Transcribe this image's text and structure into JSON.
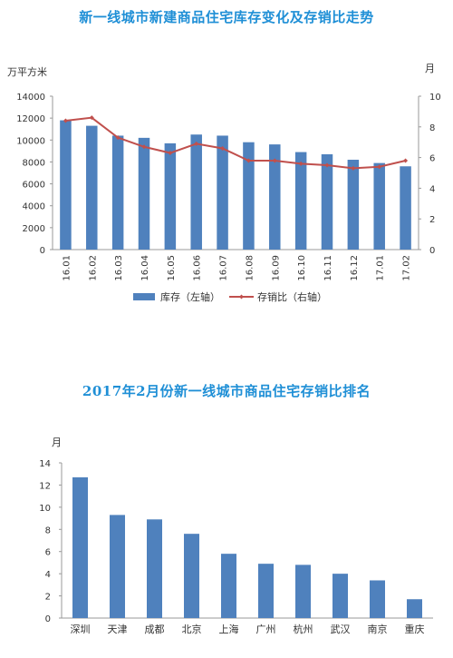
{
  "chart_data": [
    {
      "type": "bar",
      "title": "新一线城市新建商品住宅库存变化及存销比走势",
      "ylabel": "万平方米",
      "y2label": "月",
      "categories": [
        "16.01",
        "16.02",
        "16.03",
        "16.04",
        "16.05",
        "16.06",
        "16.07",
        "16.08",
        "16.09",
        "16.10",
        "16.11",
        "16.12",
        "17.01",
        "17.02"
      ],
      "ylim": [
        0,
        14000
      ],
      "yticks": [
        "0",
        "2000",
        "4000",
        "6000",
        "8000",
        "10000",
        "12000",
        "14000"
      ],
      "y2lim": [
        0,
        10
      ],
      "y2ticks": [
        "0",
        "2",
        "4",
        "6",
        "8",
        "10"
      ],
      "series": [
        {
          "name": "库存（左轴）",
          "type": "bar",
          "axis": "left",
          "values": [
            11800,
            11300,
            10400,
            10200,
            9700,
            10500,
            10400,
            9800,
            9600,
            8900,
            8700,
            8200,
            7900,
            7600
          ]
        },
        {
          "name": "存销比（右轴）",
          "type": "line",
          "axis": "right",
          "values": [
            8.4,
            8.6,
            7.3,
            6.7,
            6.3,
            6.9,
            6.6,
            5.8,
            5.8,
            5.6,
            5.5,
            5.3,
            5.4,
            5.8
          ]
        }
      ],
      "legend_position": "bottom",
      "grid": false
    },
    {
      "type": "bar",
      "title": "2017年2月份新一线城市商品住宅存销比排名",
      "ylabel": "月",
      "categories": [
        "深圳",
        "天津",
        "成都",
        "北京",
        "上海",
        "广州",
        "杭州",
        "武汉",
        "南京",
        "重庆"
      ],
      "values": [
        12.7,
        9.3,
        8.9,
        7.6,
        5.8,
        4.9,
        4.8,
        4.0,
        3.4,
        1.7
      ],
      "ylim": [
        0,
        14
      ],
      "yticks": [
        "0",
        "2",
        "4",
        "6",
        "8",
        "10",
        "12",
        "14"
      ],
      "grid": false
    }
  ],
  "colors": {
    "bar": "#4f81bd",
    "line": "#c0504d",
    "title": "#1f8fd6",
    "axis": "#999999"
  }
}
